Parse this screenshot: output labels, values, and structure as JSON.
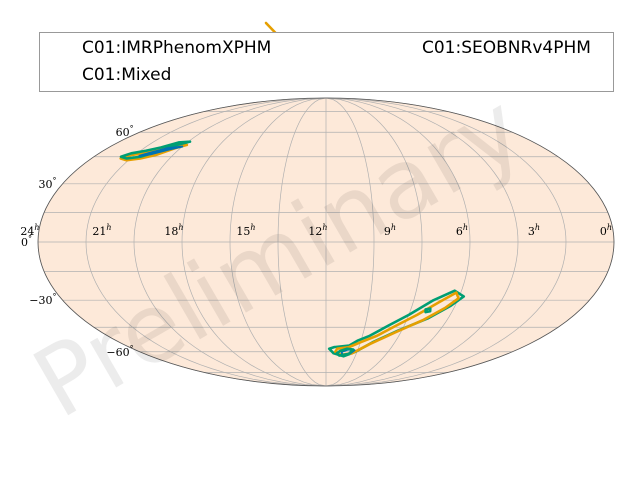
{
  "legend": {
    "entries": [
      {
        "label": "C01:IMRPhenomXPHM",
        "color": "#0072b2"
      },
      {
        "label": "C01:SEOBNRv4PHM",
        "color": "#e69f00"
      },
      {
        "label": "C01:Mixed",
        "color": "#009e73"
      }
    ]
  },
  "projection": "mollweide",
  "ra_ticks": [
    {
      "hours": 24,
      "label": "24"
    },
    {
      "hours": 21,
      "label": "21"
    },
    {
      "hours": 18,
      "label": "18"
    },
    {
      "hours": 15,
      "label": "15"
    },
    {
      "hours": 12,
      "label": "12"
    },
    {
      "hours": 9,
      "label": "9"
    },
    {
      "hours": 6,
      "label": "6"
    },
    {
      "hours": 3,
      "label": "3"
    },
    {
      "hours": 0,
      "label": "0"
    }
  ],
  "ra_unit_symbol": "h",
  "dec_ticks": [
    {
      "deg": 60,
      "label": "60"
    },
    {
      "deg": 30,
      "label": "30"
    },
    {
      "deg": 0,
      "label": "0"
    },
    {
      "deg": -30,
      "label": "−30"
    },
    {
      "deg": -60,
      "label": "−60"
    }
  ],
  "dec_unit_symbol": "°",
  "watermark": "Preliminary",
  "colors": {
    "sky_fill": "#fde9d9",
    "grid": "#b0b0b0",
    "imrphenom": "#0072b2",
    "seobnr": "#e69f00",
    "mixed": "#009e73"
  },
  "credible_regions": [
    {
      "name": "north-lobe",
      "series": [
        {
          "model": "SEOBNRv4PHM",
          "points": [
            [
              19.85,
              52
            ],
            [
              20.3,
              50
            ],
            [
              20.9,
              46
            ],
            [
              21.5,
              44
            ],
            [
              22.1,
              43
            ],
            [
              22.5,
              44
            ],
            [
              22.2,
              46
            ],
            [
              21.6,
              47
            ],
            [
              21.0,
              49
            ],
            [
              20.4,
              52
            ],
            [
              19.85,
              52
            ]
          ]
        },
        {
          "model": "C01:Mixed",
          "points": [
            [
              19.9,
              54
            ],
            [
              20.4,
              52
            ],
            [
              21.0,
              48
            ],
            [
              21.6,
              45
            ],
            [
              22.2,
              44
            ],
            [
              22.6,
              45
            ],
            [
              22.3,
              47
            ],
            [
              21.7,
              48.5
            ],
            [
              21.1,
              50.5
            ],
            [
              20.5,
              53.5
            ],
            [
              19.9,
              54
            ]
          ]
        },
        {
          "model": "IMRPhenomXPHM",
          "points": [
            [
              20.0,
              51
            ],
            [
              20.6,
              49
            ],
            [
              21.2,
              46.5
            ],
            [
              21.7,
              45.5
            ],
            [
              21.3,
              47.5
            ],
            [
              20.7,
              50
            ],
            [
              20.0,
              51
            ]
          ]
        }
      ]
    },
    {
      "name": "south-lobe",
      "series": [
        {
          "model": "C01:Mixed",
          "points": [
            [
              11.5,
              -57
            ],
            [
              10.6,
              -56
            ],
            [
              10.2,
              -53
            ],
            [
              9.6,
              -50
            ],
            [
              8.8,
              -44
            ],
            [
              8.0,
              -38
            ],
            [
              7.1,
              -30
            ],
            [
              6.3,
              -25
            ],
            [
              5.8,
              -28
            ],
            [
              6.2,
              -33
            ],
            [
              7.0,
              -40
            ],
            [
              8.2,
              -47
            ],
            [
              9.3,
              -54
            ],
            [
              10.1,
              -60
            ],
            [
              10.8,
              -63
            ],
            [
              11.5,
              -61
            ],
            [
              11.8,
              -58
            ],
            [
              11.5,
              -57
            ]
          ]
        },
        {
          "model": "SEOBNRv4PHM",
          "points": [
            [
              11.3,
              -58
            ],
            [
              10.6,
              -57
            ],
            [
              10.0,
              -54
            ],
            [
              9.2,
              -50
            ],
            [
              8.4,
              -44
            ],
            [
              7.6,
              -38
            ],
            [
              6.8,
              -31
            ],
            [
              6.2,
              -26
            ],
            [
              6.0,
              -29
            ],
            [
              6.4,
              -34
            ],
            [
              7.2,
              -41
            ],
            [
              8.3,
              -48
            ],
            [
              9.4,
              -55
            ],
            [
              10.3,
              -61
            ],
            [
              11.0,
              -62
            ],
            [
              11.4,
              -60
            ],
            [
              11.3,
              -58
            ]
          ]
        },
        {
          "model": "IMRPhenomXPHM",
          "points": [
            [
              11.0,
              -60
            ],
            [
              10.6,
              -58.5
            ],
            [
              10.2,
              -59
            ],
            [
              10.4,
              -61
            ],
            [
              10.9,
              -62
            ],
            [
              11.0,
              -60
            ]
          ]
        },
        {
          "model": "C01:Mixed",
          "points": [
            [
              11.1,
              -59.5
            ],
            [
              10.7,
              -58
            ],
            [
              10.3,
              -58.5
            ],
            [
              10.5,
              -61.5
            ],
            [
              11.1,
              -62.5
            ],
            [
              11.3,
              -61
            ],
            [
              11.1,
              -59.5
            ]
          ]
        },
        {
          "model": "C01:Mixed",
          "points": [
            [
              7.3,
              -35
            ],
            [
              7.1,
              -34.5
            ],
            [
              7.05,
              -36
            ],
            [
              7.25,
              -36.5
            ],
            [
              7.3,
              -35
            ]
          ]
        }
      ]
    },
    {
      "name": "off-map-fragment",
      "series": [
        {
          "model": "SEOBNRv4PHM",
          "points": [
            [
              13.28,
              92
            ],
            [
              13.3,
              95
            ],
            [
              13.5,
              97
            ],
            [
              13.9,
              98
            ],
            [
              14.5,
              100
            ]
          ]
        }
      ]
    }
  ]
}
